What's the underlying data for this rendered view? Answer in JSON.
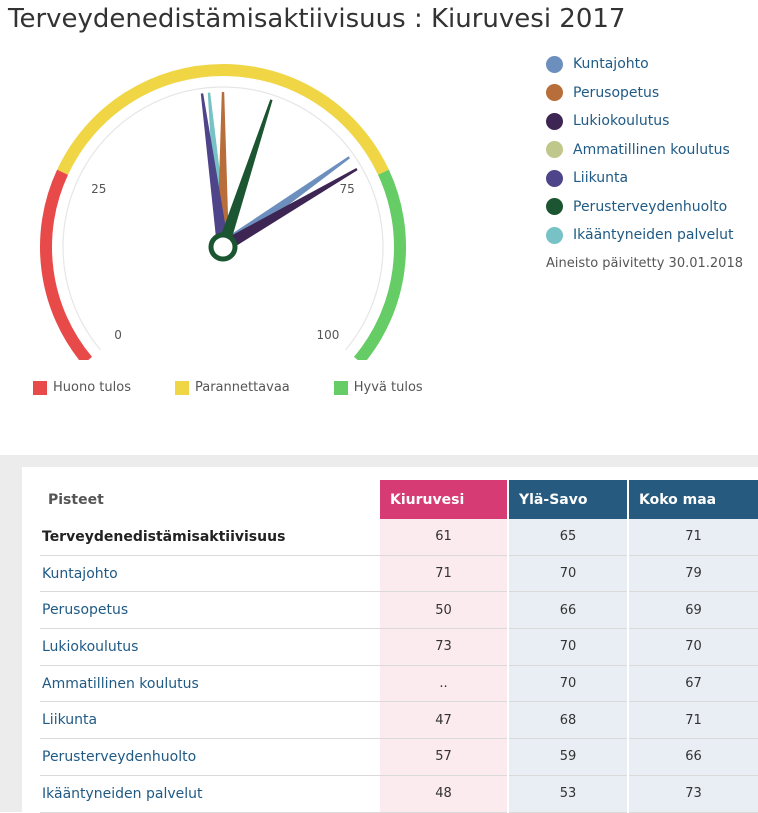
{
  "title": "Terveydenedistämisaktiivisuus : Kiuruvesi 2017",
  "chart_data": {
    "type": "gauge",
    "min": 0,
    "max": 100,
    "ticks": [
      {
        "value": 0,
        "label": "0"
      },
      {
        "value": 25,
        "label": "25"
      },
      {
        "value": 75,
        "label": "75"
      },
      {
        "value": 100,
        "label": "100"
      }
    ],
    "bands": [
      {
        "from": 0,
        "to": 25,
        "color": "#e84a4a",
        "label": "Huono tulos"
      },
      {
        "from": 25,
        "to": 75,
        "color": "#f0d645",
        "label": "Parannettavaa"
      },
      {
        "from": 75,
        "to": 100,
        "color": "#65cc66",
        "label": "Hyvä tulos"
      }
    ],
    "needles": [
      {
        "name": "Kuntajohto",
        "value": 71,
        "color": "#6d8fbe"
      },
      {
        "name": "Perusopetus",
        "value": 50,
        "color": "#b86e3a"
      },
      {
        "name": "Lukiokoulutus",
        "value": 73,
        "color": "#3e2654"
      },
      {
        "name": "Ammatillinen koulutus",
        "value": null,
        "color": "#bfc88a"
      },
      {
        "name": "Liikunta",
        "value": 47,
        "color": "#4d4489"
      },
      {
        "name": "Perusterveydenhuolto",
        "value": 57,
        "color": "#1c5531"
      },
      {
        "name": "Ikääntyneiden palvelut",
        "value": 48,
        "color": "#77c2c5"
      }
    ],
    "updated": "Aineisto päivitetty 30.01.2018"
  },
  "table": {
    "header": {
      "label": "Pisteet",
      "cols": [
        "Kiuruvesi",
        "Ylä-Savo",
        "Koko maa"
      ]
    },
    "rows": [
      {
        "label": "Terveydenedistämisaktiivisuus",
        "values": [
          "61",
          "65",
          "71"
        ]
      },
      {
        "label": "Kuntajohto",
        "values": [
          "71",
          "70",
          "79"
        ]
      },
      {
        "label": "Perusopetus",
        "values": [
          "50",
          "66",
          "69"
        ]
      },
      {
        "label": "Lukiokoulutus",
        "values": [
          "73",
          "70",
          "70"
        ]
      },
      {
        "label": "Ammatillinen koulutus",
        "values": [
          "..",
          "70",
          "67"
        ]
      },
      {
        "label": "Liikunta",
        "values": [
          "47",
          "68",
          "71"
        ]
      },
      {
        "label": "Perusterveydenhuolto",
        "values": [
          "57",
          "59",
          "66"
        ]
      },
      {
        "label": "Ikääntyneiden palvelut",
        "values": [
          "48",
          "53",
          "73"
        ]
      }
    ]
  }
}
